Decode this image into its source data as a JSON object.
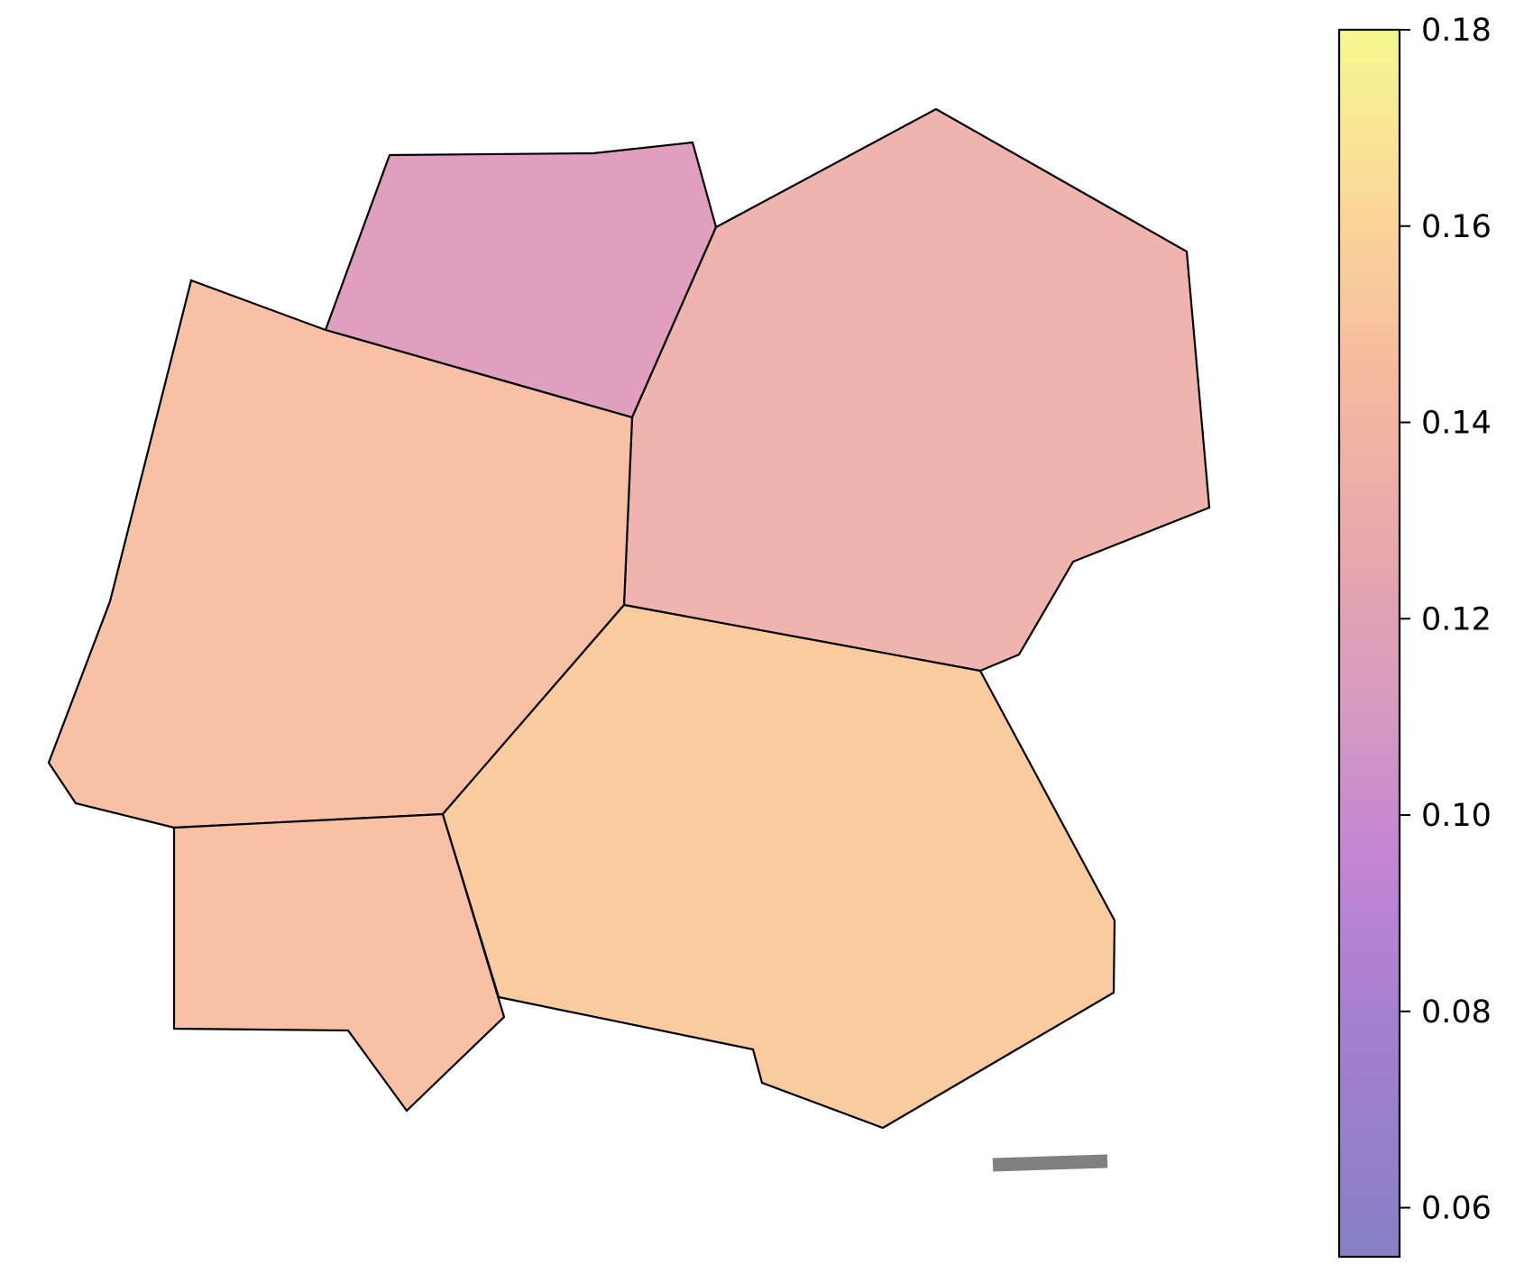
{
  "regions": [
    {
      "id": "north",
      "value": 0.107
    },
    {
      "id": "northeast",
      "value": 0.122
    },
    {
      "id": "west",
      "value": 0.132
    },
    {
      "id": "southwest",
      "value": 0.132
    },
    {
      "id": "southeast",
      "value": 0.138
    }
  ],
  "scale_bar": {
    "color": "#808080"
  },
  "colorbar": {
    "min": 0.055,
    "max": 0.18,
    "ticks": [
      "0.06",
      "0.08",
      "0.10",
      "0.12",
      "0.14",
      "0.16",
      "0.18"
    ],
    "colormap": "plasma",
    "alpha": 0.5
  }
}
